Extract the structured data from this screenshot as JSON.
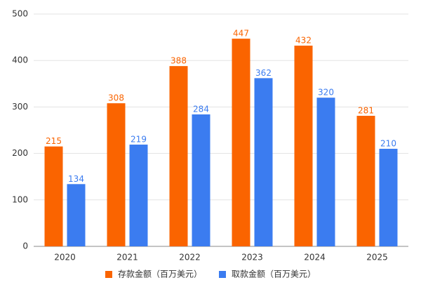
{
  "chart_data": {
    "type": "bar",
    "categories": [
      "2020",
      "2021",
      "2022",
      "2023",
      "2024",
      "2025"
    ],
    "series": [
      {
        "name": "存款金额（百万美元）",
        "color": "#fa6400",
        "values": [
          215,
          308,
          388,
          447,
          432,
          281
        ]
      },
      {
        "name": "取款金额（百万美元）",
        "color": "#3b7cf0",
        "values": [
          134,
          219,
          284,
          362,
          320,
          210
        ]
      }
    ],
    "ylim": [
      0,
      500
    ],
    "yticks": [
      0,
      100,
      200,
      300,
      400,
      500
    ],
    "grid": true,
    "legend": "bottom"
  }
}
